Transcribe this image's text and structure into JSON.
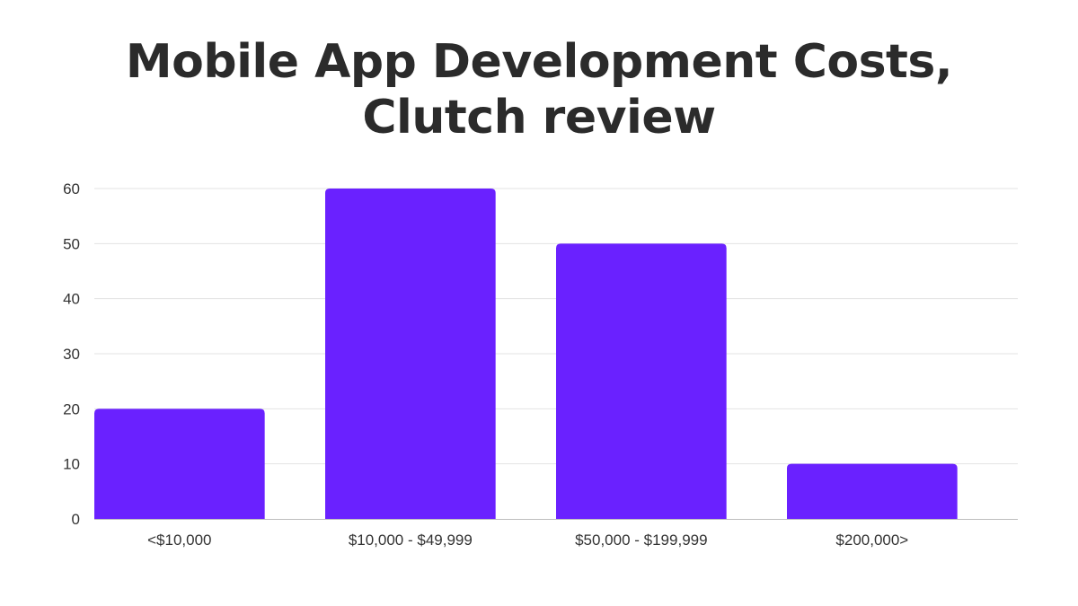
{
  "title_lines": [
    "Mobile App Development Costs,",
    "Clutch review"
  ],
  "chart_data": {
    "type": "bar",
    "title": "Mobile App Development Costs, Clutch review",
    "categories": [
      "<$10,000",
      "$10,000 - $49,999",
      "$50,000 - $199,999",
      "$200,000>"
    ],
    "values": [
      20,
      60,
      50,
      10
    ],
    "xlabel": "",
    "ylabel": "",
    "ylim": [
      0,
      60
    ],
    "yticks": [
      0,
      10,
      20,
      30,
      40,
      50,
      60
    ],
    "grid": true,
    "legend": "none",
    "bar_color": "#6a21ff",
    "grid_color": "#e3e3e3",
    "axis_color": "#bdbdbd",
    "text_color": "#333333"
  }
}
